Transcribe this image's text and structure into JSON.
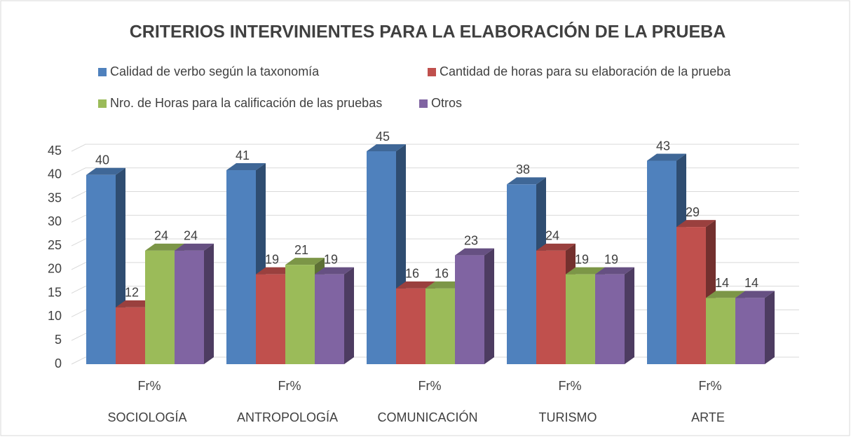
{
  "chart_data": {
    "type": "bar3d",
    "title": "CRITERIOS INTERVINIENTES PARA LA ELABORACIÓN DE LA PRUEBA",
    "categories": [
      "SOCIOLOGÍA",
      "ANTROPOLOGÍA",
      "COMUNICACIÓN",
      "TURISMO",
      "ARTE"
    ],
    "category_sublabels": [
      "Fr%",
      "Fr%",
      "Fr%",
      "Fr%",
      "Fr%"
    ],
    "series": [
      {
        "name": "Calidad de verbo según la taxonomía",
        "color": "#4f81bd",
        "values": [
          40,
          41,
          45,
          38,
          43
        ]
      },
      {
        "name": "Cantidad de horas para su elaboración de la prueba",
        "color": "#c0504d",
        "values": [
          12,
          19,
          16,
          24,
          29
        ]
      },
      {
        "name": "Nro. de Horas para la calificación de las pruebas",
        "color": "#9bbb59",
        "values": [
          24,
          21,
          16,
          19,
          14
        ]
      },
      {
        "name": "Otros",
        "color": "#8064a2",
        "values": [
          24,
          19,
          23,
          19,
          14
        ]
      }
    ],
    "ylim": [
      0,
      45
    ],
    "yticks": [
      0,
      5,
      10,
      15,
      20,
      25,
      30,
      35,
      40,
      45
    ],
    "grid": true,
    "legend": "top"
  }
}
